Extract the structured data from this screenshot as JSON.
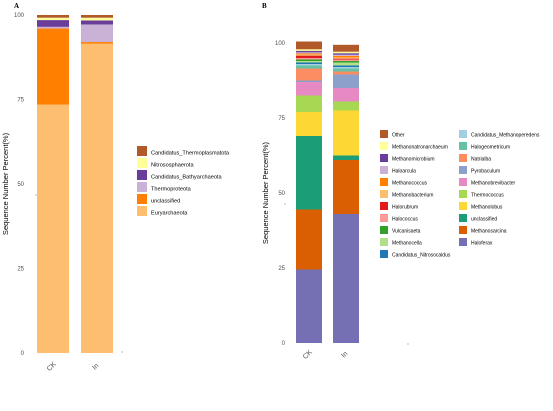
{
  "chart_data": [
    {
      "type": "bar",
      "stacked": true,
      "panel_label": "A",
      "ylabel": "Sequence Number Percent(%)",
      "ylim": [
        0,
        100
      ],
      "yticks": [
        0,
        25,
        50,
        75,
        100
      ],
      "categories": [
        "CK",
        "In"
      ],
      "series": [
        {
          "name": "Euryarchaeota",
          "color": "#FDBF6F",
          "values": [
            73.5,
            91.5
          ]
        },
        {
          "name": "unclassified",
          "color": "#FF7F00",
          "values": [
            22.5,
            0.5
          ]
        },
        {
          "name": "Thermoproteota",
          "color": "#CAB2D6",
          "values": [
            0.5,
            5.2
          ]
        },
        {
          "name": "Candidatus_Bathyarchaeota",
          "color": "#6A3D9A",
          "values": [
            2.0,
            1.2
          ]
        },
        {
          "name": "Nitrososphaerota",
          "color": "#FFFF99",
          "values": [
            0.7,
            0.8
          ]
        },
        {
          "name": "Candidatus_Thermoplasmatota",
          "color": "#B15928",
          "values": [
            0.8,
            0.8
          ]
        }
      ],
      "legend_order": [
        "Candidatus_Thermoplasmatota",
        "Nitrososphaerota",
        "Candidatus_Bathyarchaeota",
        "Thermoproteota",
        "unclassified",
        "Euryarchaeota"
      ],
      "legend_position": "right",
      "grid": false
    },
    {
      "type": "bar",
      "stacked": true,
      "panel_label": "B",
      "ylabel": "Sequence Number Percent(%)",
      "ylim": [
        0,
        100
      ],
      "yticks": [
        0,
        25,
        50,
        75,
        100
      ],
      "categories": [
        "CK",
        "In"
      ],
      "series": [
        {
          "name": "Haloferax",
          "color": "#7570B3",
          "values": [
            24.5,
            43.0
          ]
        },
        {
          "name": "Methanosarcina",
          "color": "#D95F02",
          "values": [
            20.0,
            18.0
          ]
        },
        {
          "name": "unclassified",
          "color": "#1B9E77",
          "values": [
            24.5,
            1.5
          ]
        },
        {
          "name": "Methanolobus",
          "color": "#FDD835",
          "values": [
            8.0,
            15.0
          ]
        },
        {
          "name": "Thermococcus",
          "color": "#A6D854",
          "values": [
            5.5,
            3.0
          ]
        },
        {
          "name": "Methanobrevibacter",
          "color": "#E78AC3",
          "values": [
            4.5,
            4.5
          ]
        },
        {
          "name": "Pyrobaculum",
          "color": "#8DA0CB",
          "values": [
            0.5,
            4.5
          ]
        },
        {
          "name": "Natrialba",
          "color": "#FC8D62",
          "values": [
            4.0,
            1.0
          ]
        },
        {
          "name": "Halogeometricum",
          "color": "#66C2A5",
          "values": [
            1.0,
            1.0
          ]
        },
        {
          "name": "Candidatus_Methanoperedens",
          "color": "#A6CEE3",
          "values": [
            0.5,
            0.5
          ]
        },
        {
          "name": "Candidatus_Nitrosocaldus",
          "color": "#1F78B4",
          "values": [
            0.5,
            0.5
          ]
        },
        {
          "name": "Methanocella",
          "color": "#B2DF8A",
          "values": [
            0.5,
            1.0
          ]
        },
        {
          "name": "Vulcanisaeta",
          "color": "#33A02C",
          "values": [
            0.5,
            0.5
          ]
        },
        {
          "name": "Halococcus",
          "color": "#FB9A99",
          "values": [
            0.5,
            0.5
          ]
        },
        {
          "name": "Halorubrum",
          "color": "#E31A1C",
          "values": [
            0.8,
            0.3
          ]
        },
        {
          "name": "Methanobacterium",
          "color": "#FDBF6F",
          "values": [
            0.4,
            0.4
          ]
        },
        {
          "name": "Methanococcus",
          "color": "#FF7F00",
          "values": [
            0.3,
            0.5
          ]
        },
        {
          "name": "Haloarcula",
          "color": "#CAB2D6",
          "values": [
            0.4,
            0.4
          ]
        },
        {
          "name": "Methanomicrobium",
          "color": "#6A3D9A",
          "values": [
            0.5,
            0.5
          ]
        },
        {
          "name": "Methanonatronarchaeum",
          "color": "#FFFF99",
          "values": [
            0.5,
            0.5
          ]
        },
        {
          "name": "Other",
          "color": "#B15928",
          "values": [
            2.6,
            2.3
          ]
        }
      ],
      "legend_columns": [
        [
          "Other",
          "Methanonatronarchaeum",
          "Methanomicrobium",
          "Haloarcula",
          "Methanococcus",
          "Methanobacterium",
          "Halorubrum",
          "Halococcus",
          "Vulcanisaeta",
          "Methanocella",
          "Candidatus_Nitrosocaldus"
        ],
        [
          "Candidatus_Methanoperedens",
          "Halogeometricum",
          "Natrialba",
          "Pyrobaculum",
          "Methanobrevibacter",
          "Thermococcus",
          "Methanolobus",
          "unclassified",
          "Methanosarcina",
          "Haloferax"
        ]
      ],
      "legend_position": "right",
      "grid": false
    }
  ]
}
